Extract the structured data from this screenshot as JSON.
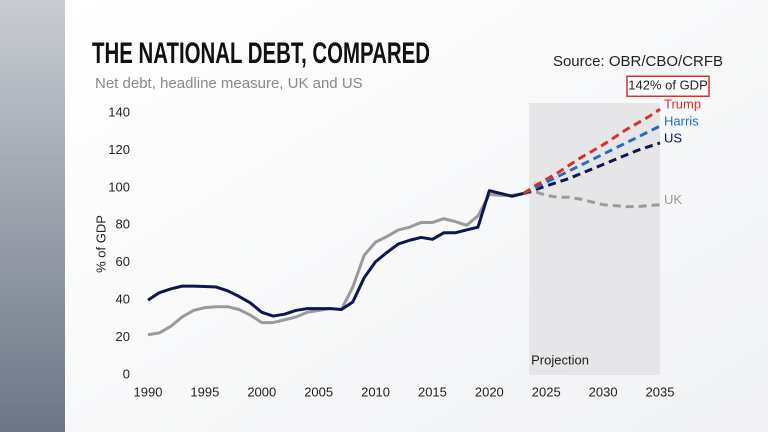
{
  "chart_data": {
    "type": "line",
    "title": "THE NATIONAL DEBT, COMPARED",
    "subtitle": "Net debt, headline measure, UK and US",
    "source": "Source: OBR/CBO/CRFB",
    "annotation": "142% of GDP",
    "projection_label": "Projection",
    "projection_span": [
      2023.5,
      2035
    ],
    "y_label": "% of GDP",
    "xlim": [
      1990,
      2035
    ],
    "ylim": [
      0,
      140
    ],
    "xticks": [
      1990,
      1995,
      2000,
      2005,
      2010,
      2015,
      2020,
      2025,
      2030,
      2035
    ],
    "yticks": [
      0,
      20,
      40,
      60,
      80,
      100,
      120,
      140
    ],
    "x": [
      1990,
      1991,
      1992,
      1993,
      1994,
      1995,
      1996,
      1997,
      1998,
      1999,
      2000,
      2001,
      2002,
      2003,
      2004,
      2005,
      2006,
      2007,
      2008,
      2009,
      2010,
      2011,
      2012,
      2013,
      2014,
      2015,
      2016,
      2017,
      2018,
      2019,
      2020,
      2021,
      2022,
      2023,
      2024,
      2025,
      2026,
      2027,
      2028,
      2029,
      2030,
      2031,
      2032,
      2033,
      2034,
      2035
    ],
    "series": [
      {
        "name": "UK",
        "color": "#9a9a9a",
        "values": [
          21.5,
          22.5,
          26,
          31,
          34.5,
          36,
          36.5,
          36.5,
          35,
          32,
          28,
          28,
          29.5,
          31,
          33.5,
          34.5,
          35.5,
          35,
          47,
          64,
          71,
          74,
          77.5,
          79,
          81.5,
          81.5,
          83.5,
          82,
          80,
          85,
          96.5,
          96,
          96,
          97,
          null,
          null,
          null,
          null,
          null,
          null,
          null,
          null,
          null,
          null,
          null,
          null
        ],
        "projection": [
          null,
          null,
          null,
          null,
          null,
          null,
          null,
          null,
          null,
          null,
          null,
          null,
          null,
          null,
          null,
          null,
          null,
          null,
          null,
          null,
          null,
          null,
          null,
          null,
          null,
          null,
          null,
          null,
          null,
          null,
          null,
          null,
          null,
          97,
          98,
          96,
          95,
          95,
          94,
          92.5,
          91,
          90.5,
          90,
          90,
          90.5,
          91
        ]
      },
      {
        "name": "US",
        "color": "#0d1650",
        "values": [
          40,
          44,
          46,
          47.5,
          47.5,
          47.3,
          47,
          45,
          42,
          38.5,
          33.5,
          31.5,
          32.5,
          34.5,
          35.5,
          35.5,
          35.5,
          35,
          39,
          52,
          60.5,
          65.5,
          70,
          72,
          73.5,
          72.5,
          76,
          76,
          77.5,
          79,
          98.5,
          97,
          95.5,
          97,
          null,
          null,
          null,
          null,
          null,
          null,
          null,
          null,
          null,
          null,
          null,
          null
        ],
        "projection": [
          null,
          null,
          null,
          null,
          null,
          null,
          null,
          null,
          null,
          null,
          null,
          null,
          null,
          null,
          null,
          null,
          null,
          null,
          null,
          null,
          null,
          null,
          null,
          null,
          null,
          null,
          null,
          null,
          null,
          null,
          null,
          null,
          null,
          97,
          99,
          101,
          103,
          105,
          107.5,
          110,
          112.5,
          115,
          117.5,
          120,
          122,
          124
        ]
      },
      {
        "name": "Harris",
        "color": "#1f6fc0",
        "projection": [
          null,
          null,
          null,
          null,
          null,
          null,
          null,
          null,
          null,
          null,
          null,
          null,
          null,
          null,
          null,
          null,
          null,
          null,
          null,
          null,
          null,
          null,
          null,
          null,
          null,
          null,
          null,
          null,
          null,
          null,
          null,
          null,
          null,
          97,
          100,
          103,
          106,
          109,
          112,
          115,
          118,
          121,
          124,
          127,
          130,
          133
        ]
      },
      {
        "name": "Trump",
        "color": "#d9302c",
        "projection": [
          null,
          null,
          null,
          null,
          null,
          null,
          null,
          null,
          null,
          null,
          null,
          null,
          null,
          null,
          null,
          null,
          null,
          null,
          null,
          null,
          null,
          null,
          null,
          null,
          null,
          null,
          null,
          null,
          null,
          null,
          null,
          null,
          null,
          97,
          101,
          104.5,
          108,
          112,
          116,
          119.5,
          123,
          127,
          131,
          134.5,
          138,
          142
        ]
      }
    ]
  }
}
